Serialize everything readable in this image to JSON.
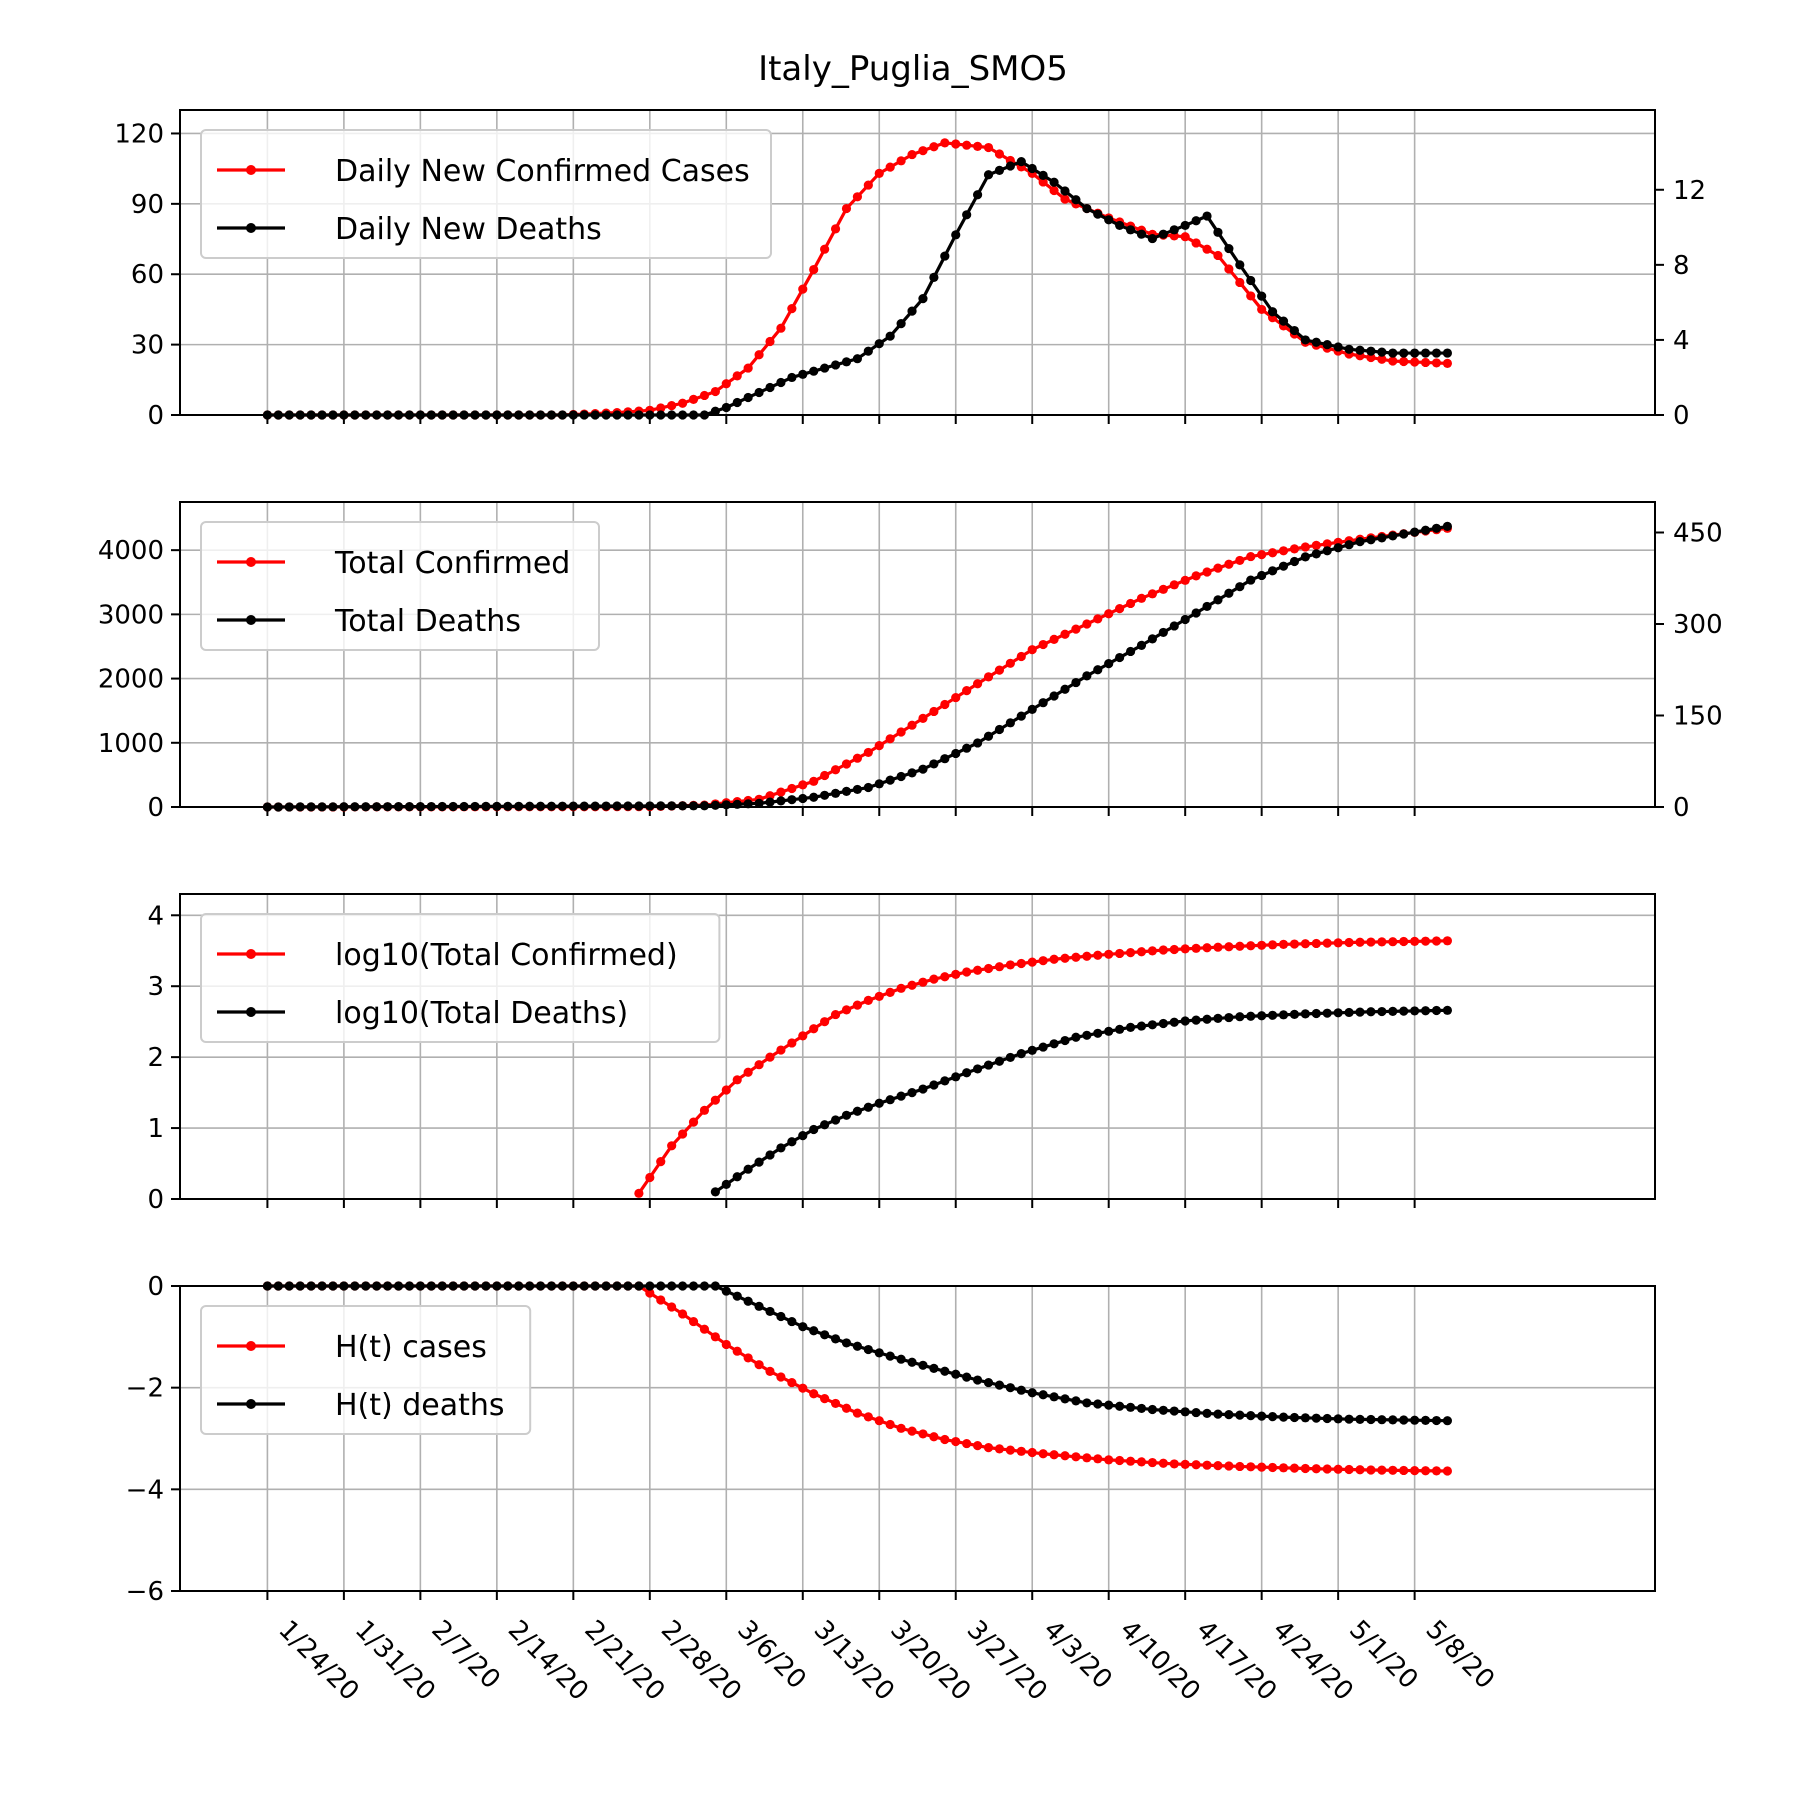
{
  "figure": {
    "title": "Italy_Puglia_SMO5"
  },
  "chart_data": [
    {
      "type": "line",
      "x_type": "date",
      "x_start": "1/24/20",
      "x_end": "5/11/20",
      "x_ticks": [
        "1/24/20",
        "1/31/20",
        "2/7/20",
        "2/14/20",
        "2/21/20",
        "2/28/20",
        "3/6/20",
        "3/13/20",
        "3/20/20",
        "3/27/20",
        "4/3/20",
        "4/10/20",
        "4/17/20",
        "4/24/20",
        "5/1/20",
        "5/8/20"
      ],
      "x_tick_labels_shown": false,
      "grid": true,
      "legend_position": "top-left",
      "ylim": [
        0,
        130
      ],
      "y_ticks": [
        0,
        30,
        60,
        90,
        120
      ],
      "y2lim": [
        0,
        16.25
      ],
      "y2_ticks": [
        0,
        4,
        8,
        12
      ],
      "series": [
        {
          "name": "Daily New Confirmed Cases",
          "color": "#ff0000",
          "axis": "left",
          "x": [
            "1/24/20",
            "2/20/20",
            "2/25/20",
            "2/28/20",
            "3/2/20",
            "3/5/20",
            "3/8/20",
            "3/11/20",
            "3/14/20",
            "3/17/20",
            "3/20/20",
            "3/23/20",
            "3/26/20",
            "3/30/20",
            "4/3/20",
            "4/6/20",
            "4/10/20",
            "4/14/20",
            "4/17/20",
            "4/20/20",
            "4/24/20",
            "4/28/20",
            "5/2/20",
            "5/6/20",
            "5/11/20"
          ],
          "y": [
            0,
            0,
            1,
            2,
            5,
            10,
            20,
            37,
            62,
            88,
            103,
            111,
            116,
            114,
            103,
            92,
            84,
            77,
            76,
            68,
            45,
            31,
            26,
            23,
            22
          ]
        },
        {
          "name": "Daily New Deaths",
          "color": "#000000",
          "axis": "right",
          "x": [
            "1/24/20",
            "3/4/20",
            "3/6/20",
            "3/9/20",
            "3/12/20",
            "3/15/20",
            "3/18/20",
            "3/21/20",
            "3/24/20",
            "3/27/20",
            "3/30/20",
            "4/2/20",
            "4/5/20",
            "4/8/20",
            "4/11/20",
            "4/14/20",
            "4/17/20",
            "4/19/20",
            "4/22/20",
            "4/25/20",
            "4/28/20",
            "5/2/20",
            "5/6/20",
            "5/11/20"
          ],
          "y": [
            0,
            0,
            0.4,
            1.2,
            2.0,
            2.5,
            3.0,
            4.2,
            6.2,
            9.6,
            12.8,
            13.5,
            12.4,
            11.0,
            10.1,
            9.4,
            10.1,
            10.6,
            8.0,
            5.5,
            4.0,
            3.5,
            3.3,
            3.3
          ]
        }
      ]
    },
    {
      "type": "line",
      "x_type": "date",
      "x_ticks": [
        "1/24/20",
        "1/31/20",
        "2/7/20",
        "2/14/20",
        "2/21/20",
        "2/28/20",
        "3/6/20",
        "3/13/20",
        "3/20/20",
        "3/27/20",
        "4/3/20",
        "4/10/20",
        "4/17/20",
        "4/24/20",
        "5/1/20",
        "5/8/20"
      ],
      "x_tick_labels_shown": false,
      "grid": true,
      "legend_position": "top-left",
      "ylim": [
        0,
        4750
      ],
      "y_ticks": [
        0,
        1000,
        2000,
        3000,
        4000
      ],
      "y2lim": [
        0,
        500
      ],
      "y2_ticks": [
        0,
        150,
        300,
        450
      ],
      "series": [
        {
          "name": "Total Confirmed",
          "color": "#ff0000",
          "axis": "left",
          "x": [
            "1/24/20",
            "2/28/20",
            "3/4/20",
            "3/9/20",
            "3/14/20",
            "3/19/20",
            "3/24/20",
            "3/29/20",
            "4/3/20",
            "4/8/20",
            "4/13/20",
            "4/18/20",
            "4/23/20",
            "4/28/20",
            "5/3/20",
            "5/11/20"
          ],
          "y": [
            0,
            5,
            30,
            120,
            400,
            850,
            1380,
            1920,
            2450,
            2850,
            3250,
            3600,
            3900,
            4050,
            4170,
            4340
          ]
        },
        {
          "name": "Total Deaths",
          "color": "#000000",
          "axis": "right",
          "x": [
            "1/24/20",
            "3/4/20",
            "3/9/20",
            "3/14/20",
            "3/19/20",
            "3/24/20",
            "3/29/20",
            "4/3/20",
            "4/8/20",
            "4/13/20",
            "4/18/20",
            "4/23/20",
            "4/28/20",
            "5/3/20",
            "5/11/20"
          ],
          "y": [
            0,
            2,
            6,
            16,
            32,
            62,
            105,
            160,
            215,
            265,
            318,
            372,
            410,
            435,
            460
          ]
        }
      ]
    },
    {
      "type": "line",
      "x_type": "date",
      "x_ticks": [
        "1/24/20",
        "1/31/20",
        "2/7/20",
        "2/14/20",
        "2/21/20",
        "2/28/20",
        "3/6/20",
        "3/13/20",
        "3/20/20",
        "3/27/20",
        "4/3/20",
        "4/10/20",
        "4/17/20",
        "4/24/20",
        "5/1/20",
        "5/8/20"
      ],
      "x_tick_labels_shown": false,
      "grid": true,
      "legend_position": "top-left",
      "ylim": [
        0,
        4.3
      ],
      "y_ticks": [
        0,
        1,
        2,
        3,
        4
      ],
      "series": [
        {
          "name": "log10(Total Confirmed)",
          "color": "#ff0000",
          "x": [
            "2/27/20",
            "3/1/20",
            "3/4/20",
            "3/7/20",
            "3/10/20",
            "3/13/20",
            "3/16/20",
            "3/19/20",
            "3/22/20",
            "3/25/20",
            "3/28/20",
            "4/1/20",
            "4/5/20",
            "4/10/20",
            "4/15/20",
            "4/20/20",
            "4/26/20",
            "5/3/20",
            "5/11/20"
          ],
          "y": [
            0.08,
            0.75,
            1.25,
            1.68,
            2.0,
            2.3,
            2.6,
            2.8,
            2.97,
            3.1,
            3.2,
            3.3,
            3.38,
            3.45,
            3.51,
            3.55,
            3.59,
            3.62,
            3.64
          ]
        },
        {
          "name": "log10(Total Deaths)",
          "color": "#000000",
          "x": [
            "3/5/20",
            "3/8/20",
            "3/11/20",
            "3/14/20",
            "3/17/20",
            "3/20/20",
            "3/24/20",
            "3/28/20",
            "4/2/20",
            "4/7/20",
            "4/12/20",
            "4/17/20",
            "4/22/20",
            "4/28/20",
            "5/4/20",
            "5/11/20"
          ],
          "y": [
            0.1,
            0.42,
            0.72,
            0.98,
            1.18,
            1.35,
            1.55,
            1.78,
            2.05,
            2.28,
            2.42,
            2.51,
            2.57,
            2.61,
            2.64,
            2.66
          ]
        }
      ]
    },
    {
      "type": "line",
      "x_type": "date",
      "x_ticks": [
        "1/24/20",
        "1/31/20",
        "2/7/20",
        "2/14/20",
        "2/21/20",
        "2/28/20",
        "3/6/20",
        "3/13/20",
        "3/20/20",
        "3/27/20",
        "4/3/20",
        "4/10/20",
        "4/17/20",
        "4/24/20",
        "5/1/20",
        "5/8/20"
      ],
      "x_tick_labels_shown": true,
      "grid": true,
      "legend_position": "top-left",
      "ylim": [
        -6,
        0
      ],
      "y_ticks": [
        -6,
        -4,
        -2,
        0
      ],
      "y_tick_labels": [
        "−6",
        "−4",
        "−2",
        "0"
      ],
      "series": [
        {
          "name": "H(t) cases",
          "color": "#ff0000",
          "x": [
            "1/24/20",
            "2/27/20",
            "3/2/20",
            "3/6/20",
            "3/10/20",
            "3/14/20",
            "3/18/20",
            "3/22/20",
            "3/26/20",
            "3/30/20",
            "4/4/20",
            "4/10/20",
            "4/16/20",
            "4/22/20",
            "4/28/20",
            "5/4/20",
            "5/11/20"
          ],
          "y": [
            0,
            0,
            -0.55,
            -1.15,
            -1.68,
            -2.12,
            -2.5,
            -2.8,
            -3.02,
            -3.18,
            -3.3,
            -3.42,
            -3.5,
            -3.55,
            -3.59,
            -3.62,
            -3.64
          ]
        },
        {
          "name": "H(t) deaths",
          "color": "#000000",
          "x": [
            "1/24/20",
            "3/5/20",
            "3/9/20",
            "3/13/20",
            "3/17/20",
            "3/21/20",
            "3/25/20",
            "3/29/20",
            "4/3/20",
            "4/8/20",
            "4/14/20",
            "4/20/20",
            "4/26/20",
            "5/2/20",
            "5/11/20"
          ],
          "y": [
            0,
            0,
            -0.4,
            -0.8,
            -1.12,
            -1.38,
            -1.62,
            -1.85,
            -2.1,
            -2.3,
            -2.43,
            -2.52,
            -2.58,
            -2.62,
            -2.65
          ]
        }
      ]
    }
  ]
}
